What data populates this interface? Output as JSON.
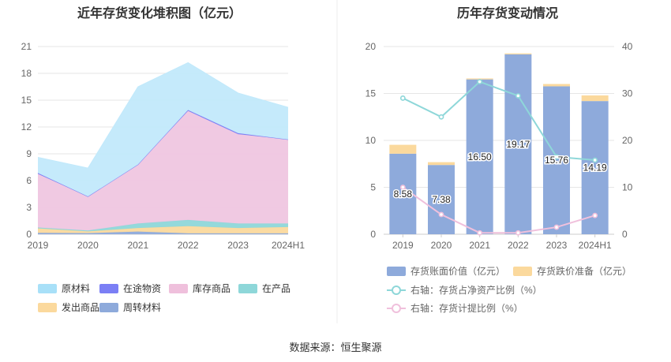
{
  "source": "数据来源：恒生聚源",
  "chart_data": [
    {
      "type": "area",
      "stacked": true,
      "title": "近年存货变化堆积图（亿元）",
      "categories": [
        "2019",
        "2020",
        "2021",
        "2022",
        "2023",
        "2024H1"
      ],
      "ylim": [
        0,
        21
      ],
      "yticks": [
        "0",
        "3",
        "6",
        "9",
        "12",
        "15",
        "18",
        "21"
      ],
      "grid": true,
      "legend_position": "bottom-left",
      "series": [
        {
          "name": "周转材料",
          "color": "#8eaadb",
          "values": [
            0.15,
            0.12,
            0.3,
            0.1,
            0.1,
            0.1
          ]
        },
        {
          "name": "发出商品",
          "color": "#fbd99d",
          "values": [
            0.5,
            0.2,
            0.4,
            0.8,
            0.6,
            0.7
          ]
        },
        {
          "name": "在产品",
          "color": "#8ed7d9",
          "values": [
            0.1,
            0.1,
            0.5,
            0.7,
            0.5,
            0.4
          ]
        },
        {
          "name": "库存商品",
          "color": "#efc6e0",
          "values": [
            6.0,
            3.8,
            6.6,
            12.2,
            10.0,
            9.4
          ]
        },
        {
          "name": "在途物资",
          "color": "#7b7ff5",
          "values": [
            0.1,
            0.0,
            0.0,
            0.1,
            0.1,
            0.0
          ]
        },
        {
          "name": "原材料",
          "color": "#c2e9fb",
          "values": [
            1.75,
            3.18,
            8.7,
            5.3,
            4.5,
            3.6
          ]
        }
      ],
      "legend_order": [
        "原材料",
        "在途物资",
        "库存商品",
        "在产品",
        "发出商品",
        "周转材料"
      ],
      "legend_colors": {
        "原材料": "#a8e0f8",
        "在途物资": "#7b7ff5",
        "库存商品": "#efc0dc",
        "在产品": "#8ed7d9",
        "发出商品": "#fbd99d",
        "周转材料": "#8eaadb"
      }
    },
    {
      "type": "bar",
      "title": "历年存货变动情况",
      "categories": [
        "2019",
        "2020",
        "2021",
        "2022",
        "2023",
        "2024H1"
      ],
      "ylim": [
        0,
        20
      ],
      "yticks": [
        "0",
        "5",
        "10",
        "15",
        "20"
      ],
      "y2lim": [
        0,
        40
      ],
      "y2ticks": [
        "0",
        "10",
        "20",
        "30",
        "40"
      ],
      "legend_position": "bottom",
      "series": [
        {
          "name": "存货账面价值（亿元）",
          "kind": "bar",
          "axis": "left",
          "color": "#8eaadb",
          "values": [
            8.58,
            7.38,
            16.5,
            19.17,
            15.76,
            14.19
          ],
          "labels": [
            "8.58",
            "7.38",
            "16.50",
            "19.17",
            "15.76",
            "14.19"
          ]
        },
        {
          "name": "存货跌价准备（亿元）",
          "kind": "bar-stack",
          "axis": "left",
          "color": "#fbd99d",
          "values": [
            0.95,
            0.3,
            0.1,
            0.1,
            0.25,
            0.6
          ]
        },
        {
          "name": "右轴：存货占净资产比例（%）",
          "kind": "line",
          "axis": "right",
          "color": "#8ed7d9",
          "values": [
            29.0,
            25.0,
            32.5,
            29.5,
            16.5,
            15.8
          ]
        },
        {
          "name": "右轴：存货计提比例（%）",
          "kind": "line",
          "axis": "right",
          "color": "#f0c0dc",
          "values": [
            10.0,
            4.2,
            0.3,
            0.3,
            1.5,
            4.0
          ]
        }
      ]
    }
  ]
}
